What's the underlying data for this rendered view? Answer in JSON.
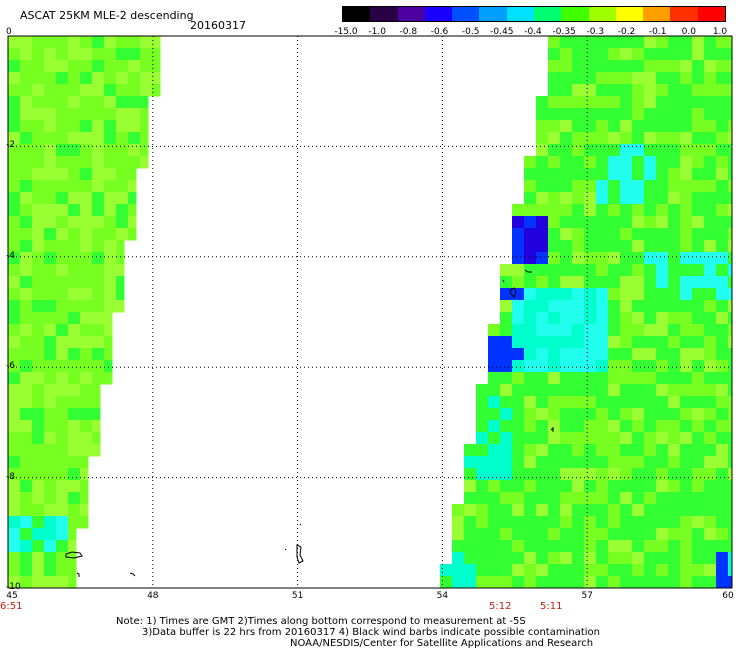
{
  "header": {
    "title": "ASCAT 25KM MLE-2 descending",
    "date": "20160317"
  },
  "colorbar": {
    "labels": [
      "-15.0",
      "-1.0",
      "-0.8",
      "-0.6",
      "-0.5",
      "-0.45",
      "-0.4",
      "-0.35",
      "-0.3",
      "-0.2",
      "-0.1",
      "0.0",
      "1.0"
    ],
    "colors": [
      "#000000",
      "#2a0045",
      "#4c00a0",
      "#1a00ff",
      "#0050ff",
      "#00a0ff",
      "#00e0ff",
      "#00ff70",
      "#40ff00",
      "#a0ff00",
      "#ffff00",
      "#ffa000",
      "#ff3000",
      "#ff0000"
    ]
  },
  "map": {
    "x_ticks": [
      "45",
      "48",
      "51",
      "54",
      "57",
      "60"
    ],
    "y_ticks": [
      "0",
      "-2",
      "-4",
      "-6",
      "-8",
      "-10"
    ],
    "x_range": [
      45,
      60
    ],
    "y_range": [
      -10,
      0
    ],
    "grid": "dotted"
  },
  "times": [
    {
      "label": "6:51"
    },
    {
      "label": "5:12"
    },
    {
      "label": "5:11"
    }
  ],
  "notes": {
    "line1": "Note: 1) Times are GMT 2)Times along bottom correspond to measurement at -5S",
    "line2": "3)Data buffer is 22 hrs from 20160317 4) Black wind barbs indicate possible contamination",
    "line3": "NOAA/NESDIS/Center for Satellite Applications and Research"
  },
  "palette": {
    "green_main": "#33ff33",
    "green_light": "#77ff22",
    "yellow_green": "#99ff33",
    "cyan": "#00ffcc",
    "cyan_light": "#22ffee",
    "blue": "#0033ff",
    "blue_deep": "#2200dd"
  }
}
